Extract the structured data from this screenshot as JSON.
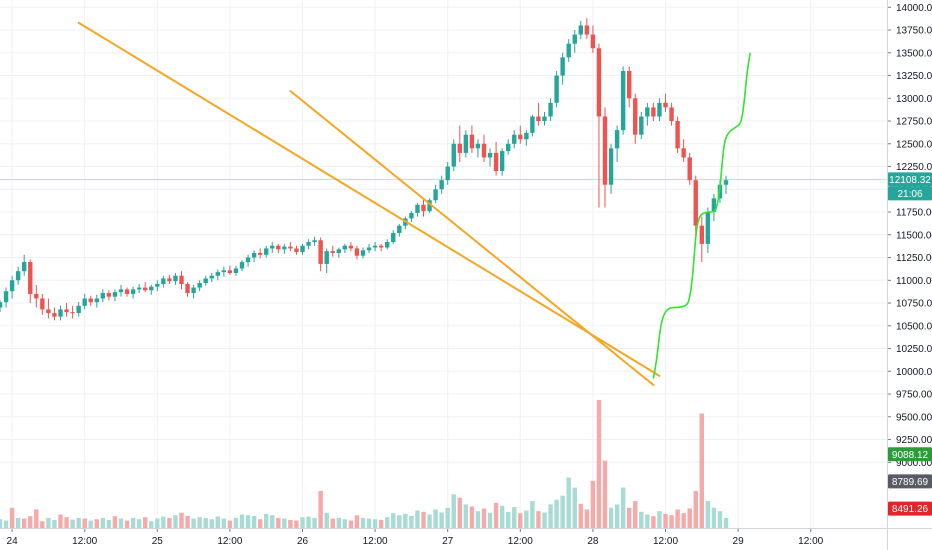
{
  "chart_data": {
    "type": "candlestick",
    "y_axis": {
      "ticks": [
        "14000.00",
        "13750.00",
        "13500.00",
        "13250.00",
        "13000.00",
        "12750.00",
        "12500.00",
        "12250.00",
        "12000.00",
        "11750.00",
        "11500.00",
        "11250.00",
        "11000.00",
        "10750.00",
        "10500.00",
        "10250.00",
        "10000.00",
        "9750.00",
        "9500.00",
        "9250.00",
        "9000.00"
      ],
      "ylim": [
        8300,
        14080
      ],
      "position": "right"
    },
    "x_axis": {
      "ticks": [
        "24",
        "12:00",
        "25",
        "12:00",
        "26",
        "12:00",
        "27",
        "12:00",
        "28",
        "12:00",
        "29",
        "12:00"
      ],
      "start": "23-22:00",
      "bar_hours": 1,
      "hours_span": 146
    },
    "ohlc": [
      [
        10700,
        10780,
        10650,
        10760
      ],
      [
        10760,
        10920,
        10700,
        10880
      ],
      [
        10880,
        11050,
        10800,
        11000
      ],
      [
        11000,
        11150,
        10950,
        11100
      ],
      [
        11100,
        11280,
        11050,
        11200
      ],
      [
        11200,
        11230,
        10750,
        10850
      ],
      [
        10850,
        10950,
        10700,
        10800
      ],
      [
        10800,
        10850,
        10620,
        10680
      ],
      [
        10680,
        10800,
        10580,
        10640
      ],
      [
        10640,
        10700,
        10560,
        10600
      ],
      [
        10600,
        10720,
        10560,
        10680
      ],
      [
        10680,
        10750,
        10600,
        10650
      ],
      [
        10650,
        10720,
        10580,
        10640
      ],
      [
        10640,
        10760,
        10600,
        10720
      ],
      [
        10720,
        10850,
        10680,
        10800
      ],
      [
        10800,
        10830,
        10720,
        10760
      ],
      [
        10760,
        10840,
        10700,
        10800
      ],
      [
        10800,
        10900,
        10760,
        10860
      ],
      [
        10860,
        10890,
        10780,
        10820
      ],
      [
        10820,
        10900,
        10770,
        10870
      ],
      [
        10870,
        10950,
        10820,
        10900
      ],
      [
        10900,
        10920,
        10820,
        10850
      ],
      [
        10850,
        10930,
        10800,
        10900
      ],
      [
        10900,
        10960,
        10860,
        10920
      ],
      [
        10920,
        10980,
        10870,
        10890
      ],
      [
        10890,
        10950,
        10840,
        10930
      ],
      [
        10930,
        11000,
        10880,
        10960
      ],
      [
        10960,
        11050,
        10920,
        11020
      ],
      [
        11020,
        11060,
        10960,
        10990
      ],
      [
        10990,
        11080,
        10950,
        11050
      ],
      [
        11050,
        11100,
        10900,
        10960
      ],
      [
        10960,
        10980,
        10820,
        10860
      ],
      [
        10860,
        10950,
        10800,
        10920
      ],
      [
        10920,
        11000,
        10880,
        10970
      ],
      [
        10970,
        11050,
        10940,
        11020
      ],
      [
        11020,
        11080,
        10980,
        11050
      ],
      [
        11050,
        11120,
        11000,
        11090
      ],
      [
        11090,
        11150,
        11040,
        11110
      ],
      [
        11110,
        11160,
        11060,
        11080
      ],
      [
        11080,
        11160,
        11050,
        11130
      ],
      [
        11130,
        11220,
        11100,
        11200
      ],
      [
        11200,
        11280,
        11150,
        11250
      ],
      [
        11250,
        11330,
        11200,
        11300
      ],
      [
        11300,
        11350,
        11240,
        11280
      ],
      [
        11280,
        11380,
        11250,
        11350
      ],
      [
        11350,
        11420,
        11300,
        11380
      ],
      [
        11380,
        11400,
        11300,
        11340
      ],
      [
        11340,
        11400,
        11290,
        11370
      ],
      [
        11370,
        11420,
        11320,
        11350
      ],
      [
        11350,
        11380,
        11280,
        11310
      ],
      [
        11310,
        11400,
        11280,
        11380
      ],
      [
        11380,
        11450,
        11340,
        11420
      ],
      [
        11420,
        11480,
        11380,
        11440
      ],
      [
        11440,
        11470,
        11100,
        11180
      ],
      [
        11180,
        11350,
        11080,
        11320
      ],
      [
        11320,
        11380,
        11260,
        11300
      ],
      [
        11300,
        11360,
        11250,
        11340
      ],
      [
        11340,
        11400,
        11300,
        11380
      ],
      [
        11380,
        11420,
        11320,
        11350
      ],
      [
        11350,
        11380,
        11230,
        11270
      ],
      [
        11270,
        11360,
        11240,
        11330
      ],
      [
        11330,
        11400,
        11300,
        11360
      ],
      [
        11360,
        11420,
        11320,
        11380
      ],
      [
        11380,
        11400,
        11320,
        11360
      ],
      [
        11360,
        11450,
        11340,
        11420
      ],
      [
        11420,
        11550,
        11400,
        11520
      ],
      [
        11520,
        11620,
        11480,
        11600
      ],
      [
        11600,
        11700,
        11560,
        11680
      ],
      [
        11680,
        11760,
        11640,
        11740
      ],
      [
        11740,
        11850,
        11700,
        11830
      ],
      [
        11830,
        11900,
        11700,
        11760
      ],
      [
        11760,
        11900,
        11740,
        11880
      ],
      [
        11880,
        12050,
        11850,
        12000
      ],
      [
        12000,
        12150,
        11950,
        12100
      ],
      [
        12100,
        12300,
        12050,
        12250
      ],
      [
        12250,
        12550,
        12200,
        12500
      ],
      [
        12500,
        12700,
        12300,
        12400
      ],
      [
        12400,
        12650,
        12350,
        12600
      ],
      [
        12600,
        12700,
        12400,
        12450
      ],
      [
        12450,
        12550,
        12350,
        12500
      ],
      [
        12500,
        12600,
        12300,
        12350
      ],
      [
        12350,
        12450,
        12250,
        12400
      ],
      [
        12400,
        12520,
        12150,
        12200
      ],
      [
        12200,
        12450,
        12150,
        12420
      ],
      [
        12420,
        12550,
        12380,
        12500
      ],
      [
        12500,
        12650,
        12450,
        12600
      ],
      [
        12600,
        12700,
        12500,
        12550
      ],
      [
        12550,
        12650,
        12480,
        12620
      ],
      [
        12620,
        12820,
        12580,
        12800
      ],
      [
        12800,
        12950,
        12700,
        12750
      ],
      [
        12750,
        12850,
        12700,
        12800
      ],
      [
        12800,
        13000,
        12750,
        12950
      ],
      [
        12950,
        13300,
        12900,
        13250
      ],
      [
        13250,
        13500,
        13150,
        13450
      ],
      [
        13450,
        13650,
        13400,
        13600
      ],
      [
        13600,
        13750,
        13500,
        13700
      ],
      [
        13700,
        13850,
        13650,
        13800
      ],
      [
        13800,
        13880,
        13650,
        13700
      ],
      [
        13700,
        13800,
        13500,
        13550
      ],
      [
        13550,
        13600,
        11800,
        12800
      ],
      [
        12800,
        12900,
        11800,
        12050
      ],
      [
        12050,
        12500,
        11950,
        12450
      ],
      [
        12450,
        12700,
        12300,
        12650
      ],
      [
        12650,
        13350,
        12600,
        13300
      ],
      [
        13300,
        13350,
        12900,
        13000
      ],
      [
        13000,
        13050,
        12500,
        12600
      ],
      [
        12600,
        12850,
        12550,
        12800
      ],
      [
        12800,
        12950,
        12700,
        12900
      ],
      [
        12900,
        12950,
        12750,
        12800
      ],
      [
        12800,
        13000,
        12750,
        12950
      ],
      [
        12950,
        13050,
        12850,
        12900
      ],
      [
        12900,
        12950,
        12700,
        12750
      ],
      [
        12750,
        12800,
        12400,
        12450
      ],
      [
        12450,
        12550,
        12300,
        12350
      ],
      [
        12350,
        12400,
        12050,
        12100
      ],
      [
        12100,
        12150,
        11500,
        11600
      ],
      [
        11600,
        11700,
        11200,
        11400
      ],
      [
        11400,
        11800,
        11300,
        11750
      ],
      [
        11750,
        11950,
        11650,
        11900
      ],
      [
        11900,
        12100,
        11850,
        12050
      ],
      [
        12050,
        12150,
        11950,
        12100
      ]
    ],
    "volume": [
      [
        26,
        1
      ],
      [
        22,
        1
      ],
      [
        60,
        0
      ],
      [
        30,
        1
      ],
      [
        28,
        0
      ],
      [
        35,
        0
      ],
      [
        55,
        0
      ],
      [
        20,
        0
      ],
      [
        30,
        1
      ],
      [
        24,
        1
      ],
      [
        40,
        0
      ],
      [
        32,
        0
      ],
      [
        25,
        1
      ],
      [
        30,
        1
      ],
      [
        28,
        0
      ],
      [
        22,
        1
      ],
      [
        26,
        0
      ],
      [
        30,
        1
      ],
      [
        24,
        1
      ],
      [
        35,
        0
      ],
      [
        28,
        1
      ],
      [
        22,
        0
      ],
      [
        30,
        1
      ],
      [
        26,
        1
      ],
      [
        32,
        0
      ],
      [
        20,
        1
      ],
      [
        28,
        1
      ],
      [
        34,
        1
      ],
      [
        30,
        0
      ],
      [
        38,
        1
      ],
      [
        45,
        0
      ],
      [
        36,
        0
      ],
      [
        28,
        1
      ],
      [
        32,
        1
      ],
      [
        30,
        1
      ],
      [
        26,
        1
      ],
      [
        34,
        1
      ],
      [
        28,
        1
      ],
      [
        22,
        0
      ],
      [
        30,
        1
      ],
      [
        40,
        1
      ],
      [
        38,
        1
      ],
      [
        36,
        1
      ],
      [
        26,
        0
      ],
      [
        42,
        1
      ],
      [
        38,
        1
      ],
      [
        30,
        0
      ],
      [
        28,
        1
      ],
      [
        24,
        0
      ],
      [
        22,
        0
      ],
      [
        32,
        1
      ],
      [
        34,
        1
      ],
      [
        30,
        1
      ],
      [
        110,
        0
      ],
      [
        45,
        1
      ],
      [
        28,
        0
      ],
      [
        30,
        1
      ],
      [
        26,
        1
      ],
      [
        22,
        0
      ],
      [
        38,
        0
      ],
      [
        30,
        1
      ],
      [
        28,
        1
      ],
      [
        26,
        1
      ],
      [
        24,
        0
      ],
      [
        32,
        1
      ],
      [
        44,
        1
      ],
      [
        38,
        1
      ],
      [
        42,
        1
      ],
      [
        36,
        1
      ],
      [
        52,
        1
      ],
      [
        48,
        0
      ],
      [
        40,
        1
      ],
      [
        55,
        1
      ],
      [
        46,
        1
      ],
      [
        60,
        1
      ],
      [
        100,
        1
      ],
      [
        90,
        0
      ],
      [
        70,
        1
      ],
      [
        64,
        0
      ],
      [
        50,
        1
      ],
      [
        58,
        0
      ],
      [
        45,
        1
      ],
      [
        75,
        0
      ],
      [
        66,
        1
      ],
      [
        48,
        1
      ],
      [
        62,
        1
      ],
      [
        44,
        0
      ],
      [
        52,
        1
      ],
      [
        80,
        1
      ],
      [
        50,
        0
      ],
      [
        46,
        1
      ],
      [
        70,
        1
      ],
      [
        84,
        1
      ],
      [
        96,
        1
      ],
      [
        150,
        1
      ],
      [
        120,
        1
      ],
      [
        72,
        0
      ],
      [
        55,
        0
      ],
      [
        140,
        0
      ],
      [
        380,
        0
      ],
      [
        200,
        0
      ],
      [
        60,
        1
      ],
      [
        70,
        1
      ],
      [
        120,
        1
      ],
      [
        60,
        0
      ],
      [
        80,
        0
      ],
      [
        48,
        1
      ],
      [
        40,
        1
      ],
      [
        35,
        0
      ],
      [
        50,
        1
      ],
      [
        42,
        0
      ],
      [
        38,
        0
      ],
      [
        55,
        0
      ],
      [
        44,
        0
      ],
      [
        58,
        0
      ],
      [
        110,
        0
      ],
      [
        340,
        0
      ],
      [
        80,
        1
      ],
      [
        60,
        1
      ],
      [
        50,
        1
      ],
      [
        30,
        1
      ]
    ],
    "trendlines": [
      {
        "from": [
          "24-11:00",
          13830
        ],
        "to": [
          "28-11:00",
          9950
        ]
      },
      {
        "from": [
          "25-22:00",
          13080
        ],
        "to": [
          "28-10:00",
          9850
        ]
      }
    ],
    "projection": [
      [
        "28-10:00",
        9920
      ],
      [
        "28-10:30",
        10100
      ],
      [
        "28-11:00",
        10400
      ],
      [
        "28-11:30",
        10600
      ],
      [
        "28-12:30",
        10700
      ],
      [
        "28-14:00",
        10700
      ],
      [
        "28-15:30",
        10720
      ],
      [
        "28-16:00",
        10800
      ],
      [
        "28-16:30",
        11050
      ],
      [
        "28-17:00",
        11500
      ],
      [
        "28-17:30",
        11700
      ],
      [
        "28-18:30",
        11750
      ],
      [
        "28-20:00",
        11750
      ],
      [
        "28-20:30",
        11800
      ],
      [
        "28-21:00",
        12000
      ],
      [
        "28-21:30",
        12400
      ],
      [
        "28-22:00",
        12600
      ],
      [
        "28-23:30",
        12680
      ],
      [
        "29-00:30",
        12720
      ],
      [
        "29-01:00",
        12950
      ],
      [
        "29-01:30",
        13300
      ],
      [
        "29-02:00",
        13500
      ]
    ],
    "price_labels": {
      "current": "12108.32",
      "countdown": "21:06",
      "level_green": "9088.12",
      "level_grey": "8789.69",
      "level_red": "8491.26"
    },
    "colors": {
      "up": "#26a69a",
      "down": "#ef5350",
      "vol_up": "#a8dbd4",
      "vol_down": "#f5a9a8",
      "trendline": "#f5a623",
      "projection": "#33e32e",
      "price_line": "#b6e0da",
      "grid": "#eef0f3"
    },
    "grid": true,
    "legend": null
  }
}
